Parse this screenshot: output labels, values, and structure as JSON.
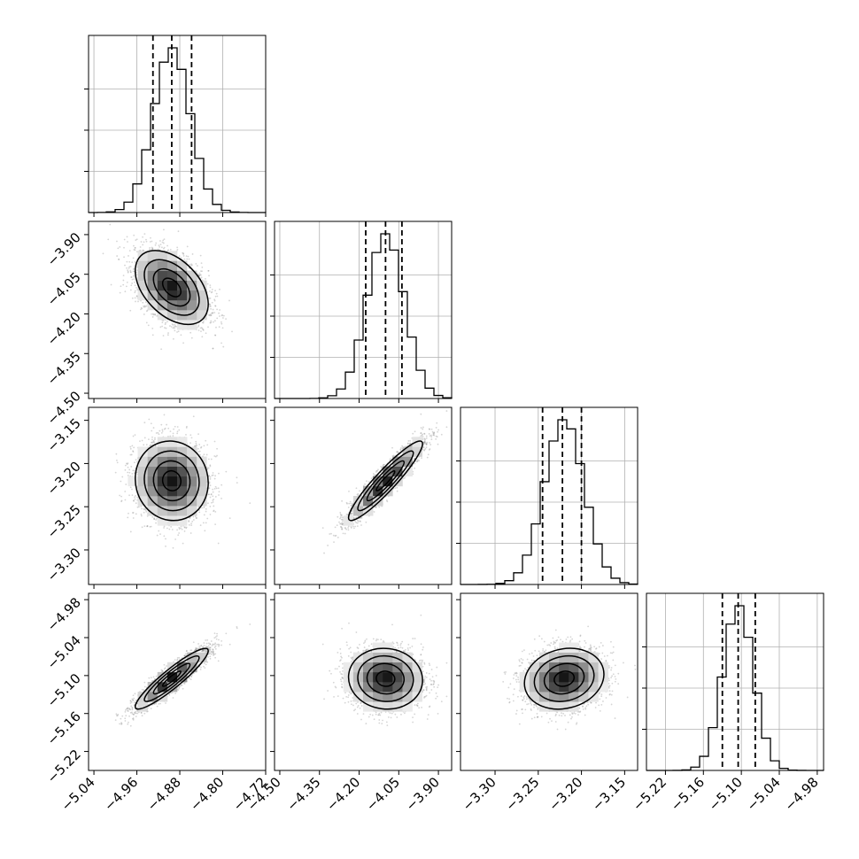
{
  "chart_data": {
    "type": "corner",
    "parameters": [
      {
        "label": "",
        "range": [
          -5.05,
          -4.72
        ],
        "mean": -4.895,
        "std": 0.034,
        "quantiles": [
          -4.93,
          -4.895,
          -4.858
        ],
        "ticks": [
          -5.04,
          -4.96,
          -4.88,
          -4.8,
          -4.72
        ],
        "tick_labels": [
          "−5.04",
          "−4.96",
          "−4.88",
          "−4.80",
          "−4.72"
        ]
      },
      {
        "label": "",
        "range": [
          -4.52,
          -3.85
        ],
        "mean": -4.1,
        "std": 0.07,
        "quantiles": [
          -4.175,
          -4.1,
          -4.038
        ],
        "ticks": [
          -4.5,
          -4.35,
          -4.2,
          -4.05,
          -3.9
        ],
        "tick_labels": [
          "−4.50",
          "−4.35",
          "−4.20",
          "−4.05",
          "−3.90"
        ]
      },
      {
        "label": "",
        "range": [
          -3.34,
          -3.135
        ],
        "mean": -3.22,
        "std": 0.023,
        "quantiles": [
          -3.245,
          -3.222,
          -3.2
        ],
        "ticks": [
          -3.3,
          -3.25,
          -3.2,
          -3.15
        ],
        "tick_labels": [
          "−3.30",
          "−3.25",
          "−3.20",
          "−3.15"
        ]
      },
      {
        "label": "",
        "range": [
          -5.25,
          -4.97
        ],
        "mean": -5.105,
        "std": 0.024,
        "quantiles": [
          -5.13,
          -5.105,
          -5.078
        ],
        "ticks": [
          -5.22,
          -5.16,
          -5.1,
          -5.04,
          -4.98
        ],
        "tick_labels": [
          "−5.22",
          "−5.16",
          "−5.10",
          "−5.04",
          "−4.98"
        ]
      }
    ],
    "correlations": [
      {
        "x": 0,
        "y": 1,
        "rho": -0.45
      },
      {
        "x": 0,
        "y": 2,
        "rho": -0.05
      },
      {
        "x": 1,
        "y": 2,
        "rho": 0.93
      },
      {
        "x": 0,
        "y": 3,
        "rho": 0.92
      },
      {
        "x": 1,
        "y": 3,
        "rho": -0.05
      },
      {
        "x": 2,
        "y": 3,
        "rho": 0.15
      }
    ],
    "histogram_bins": 20,
    "quantile_line_style": "dashed",
    "grid": true,
    "colors": {
      "hist": "#000000",
      "scatter": "#888888",
      "contour": "#000000",
      "grid": "#b0b0b0"
    }
  }
}
